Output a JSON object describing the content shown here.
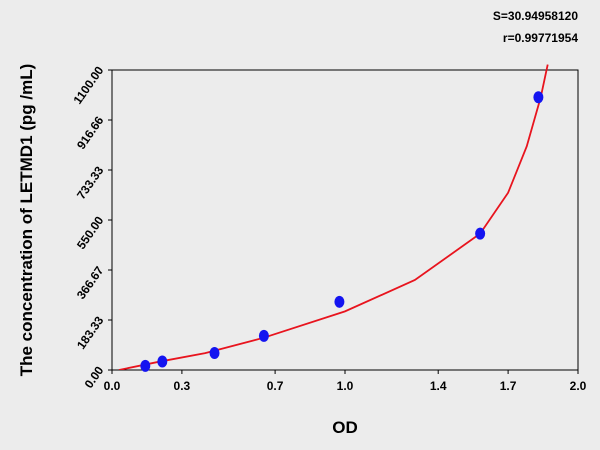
{
  "chart_data": {
    "type": "scatter",
    "annotations": [
      "S=30.94958120",
      "r=0.99771954"
    ],
    "xlabel": "OD",
    "ylabel": "The concentration of LETMD1 (pg /mL)",
    "xlim": [
      0,
      2
    ],
    "ylim": [
      0,
      1100
    ],
    "xticks": [
      {
        "value": 0,
        "label": "0.0"
      },
      0.3,
      0.7,
      {
        "value": 1,
        "label": "1.0"
      },
      1.4,
      1.7,
      {
        "value": 2,
        "label": "2.0"
      }
    ],
    "yticks": [
      {
        "value": 0,
        "label": "0.00"
      },
      183.33,
      366.67,
      {
        "value": 550,
        "label": "550.00"
      },
      733.33,
      916.66,
      {
        "value": 1100,
        "label": "1100.00"
      }
    ],
    "series": [
      {
        "color": "#1414f0",
        "x": [
          0.143,
          0.216,
          0.44,
          0.652,
          0.976,
          1.58,
          1.83
        ],
        "values": [
          15,
          31,
          62.5,
          125,
          250,
          500,
          1000
        ]
      }
    ],
    "fit": {
      "color": "#e8141e",
      "x": [
        0.03,
        0.2,
        0.4,
        0.65,
        1.0,
        1.3,
        1.58,
        1.7,
        1.78,
        1.84,
        1.87
      ],
      "values": [
        0,
        30,
        62,
        118,
        215,
        330,
        500,
        650,
        820,
        1000,
        1120
      ]
    }
  }
}
